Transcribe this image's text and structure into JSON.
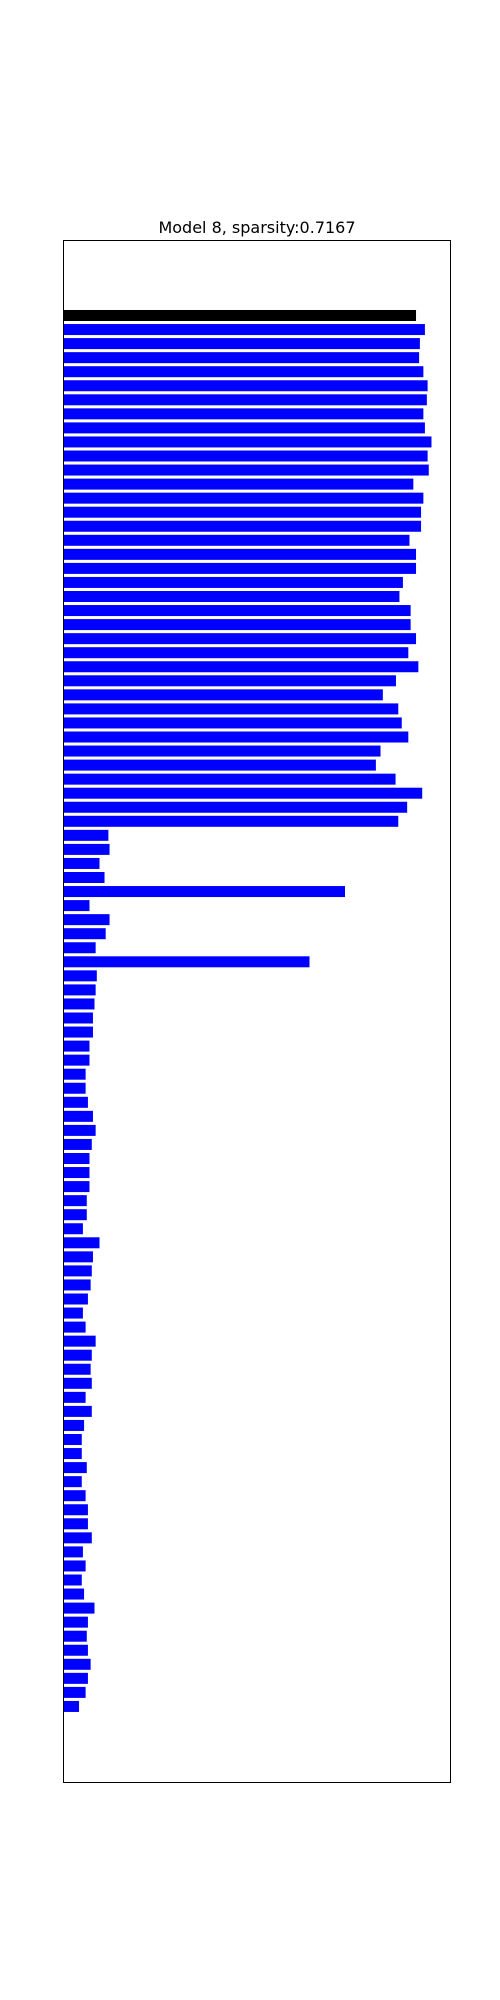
{
  "chart_data": {
    "type": "bar",
    "orientation": "horizontal",
    "title": "Model 8, sparsity:0.7167",
    "xlabel": "",
    "ylabel": "",
    "grid": false,
    "axis_ticks": false,
    "xlim": [
      0,
      1
    ],
    "colors": {
      "highlight": "#000000",
      "default": "#0000ff"
    },
    "highlight_index": 0,
    "values": [
      0.912,
      0.935,
      0.922,
      0.92,
      0.931,
      0.942,
      0.94,
      0.931,
      0.935,
      0.952,
      0.942,
      0.945,
      0.905,
      0.931,
      0.925,
      0.925,
      0.895,
      0.912,
      0.912,
      0.878,
      0.869,
      0.898,
      0.898,
      0.912,
      0.892,
      0.918,
      0.86,
      0.826,
      0.866,
      0.875,
      0.892,
      0.82,
      0.808,
      0.859,
      0.928,
      0.889,
      0.866,
      0.115,
      0.118,
      0.092,
      0.105,
      0.728,
      0.066,
      0.118,
      0.108,
      0.082,
      0.636,
      0.085,
      0.082,
      0.079,
      0.075,
      0.075,
      0.066,
      0.066,
      0.056,
      0.056,
      0.062,
      0.075,
      0.082,
      0.072,
      0.066,
      0.066,
      0.066,
      0.059,
      0.059,
      0.049,
      0.092,
      0.075,
      0.072,
      0.069,
      0.062,
      0.049,
      0.056,
      0.082,
      0.072,
      0.069,
      0.072,
      0.056,
      0.072,
      0.052,
      0.046,
      0.046,
      0.059,
      0.046,
      0.056,
      0.062,
      0.062,
      0.072,
      0.049,
      0.056,
      0.046,
      0.052,
      0.079,
      0.062,
      0.059,
      0.062,
      0.069,
      0.062,
      0.056,
      0.039
    ]
  }
}
